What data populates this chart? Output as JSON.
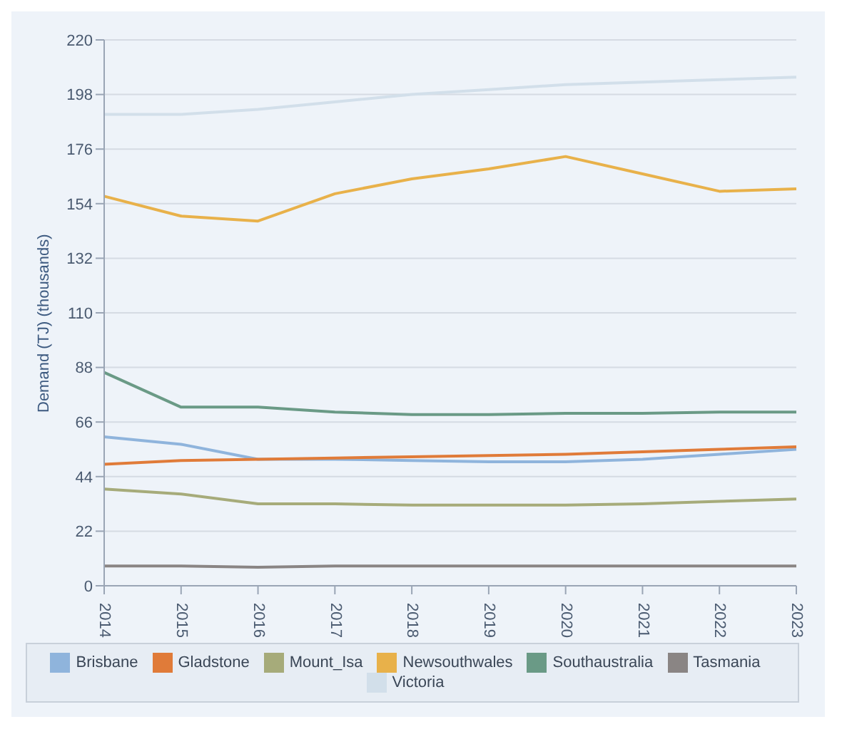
{
  "chart_data": {
    "type": "line",
    "ylabel": "Demand (TJ) (thousands)",
    "categories": [
      "2014",
      "2015",
      "2016",
      "2017",
      "2018",
      "2019",
      "2020",
      "2021",
      "2022",
      "2023"
    ],
    "series": [
      {
        "name": "Brisbane",
        "color": "#8fb4dc",
        "values": [
          60,
          57,
          51,
          51,
          50.5,
          50,
          50,
          51,
          53,
          55
        ]
      },
      {
        "name": "Gladstone",
        "color": "#e07b39",
        "values": [
          49,
          50.5,
          51,
          51.5,
          52,
          52.5,
          53,
          54,
          55,
          56
        ]
      },
      {
        "name": "Mount_Isa",
        "color": "#a6ab7a",
        "values": [
          39,
          37,
          33,
          33,
          32.5,
          32.5,
          32.5,
          33,
          34,
          35
        ]
      },
      {
        "name": "Newsouthwales",
        "color": "#e8b14a",
        "values": [
          157,
          149,
          147,
          158,
          164,
          168,
          173,
          166,
          159,
          160
        ]
      },
      {
        "name": "Southaustralia",
        "color": "#6a9a86",
        "values": [
          86,
          72,
          72,
          70,
          69,
          69,
          69.5,
          69.5,
          70,
          70
        ]
      },
      {
        "name": "Tasmania",
        "color": "#8a8584",
        "values": [
          8,
          8,
          7.5,
          8,
          8,
          8,
          8,
          8,
          8,
          8
        ]
      },
      {
        "name": "Victoria",
        "color": "#d2dfea",
        "values": [
          190,
          190,
          192,
          195,
          198,
          200,
          202,
          203,
          204,
          205
        ]
      }
    ],
    "ylim": [
      0,
      220
    ],
    "yticks": [
      0,
      22,
      44,
      66,
      88,
      110,
      132,
      154,
      176,
      198,
      220
    ],
    "grid": "y",
    "legend": "bottom",
    "marker": "none",
    "line_style": "solid"
  }
}
